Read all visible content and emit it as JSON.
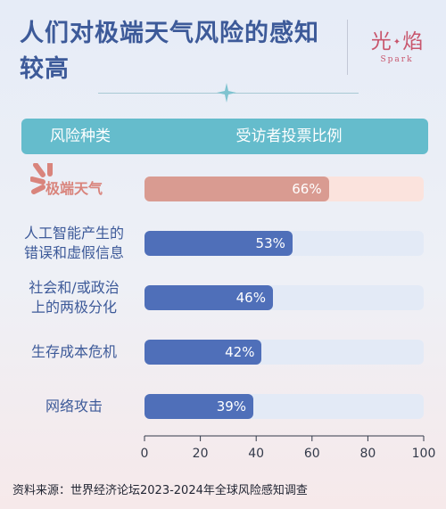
{
  "title": "人们对极端天气风险的感知较高",
  "logo": {
    "text_main": "光焰",
    "text_sub": "Spark"
  },
  "table_header": {
    "category": "风险种类",
    "share": "受访者投票比例"
  },
  "source": "资料来源：世界经济论坛2023-2024年全球风险感知调查",
  "colors": {
    "title": "#3d5a99",
    "header_bg": "#65bccc",
    "highlight_bar": "#d99b91",
    "highlight_track": "#fbe3dd",
    "bar": "#4f6fb9",
    "track": "#e3eaf6"
  },
  "chart_data": {
    "type": "bar",
    "orientation": "horizontal",
    "categories": [
      "极端天气",
      "人工智能产生的错误和虚假信息",
      "社会和/或政治上的两极分化",
      "生存成本危机",
      "网络攻击"
    ],
    "category_lines": [
      [
        "极端天气"
      ],
      [
        "人工智能产生的",
        "错误和虚假信息"
      ],
      [
        "社会和/或政治",
        "上的两极分化"
      ],
      [
        "生存成本危机"
      ],
      [
        "网络攻击"
      ]
    ],
    "values": [
      66,
      53,
      46,
      42,
      39
    ],
    "value_labels": [
      "66%",
      "53%",
      "46%",
      "42%",
      "39%"
    ],
    "highlight_index": 0,
    "xlim": [
      0,
      100
    ],
    "xticks": [
      0,
      20,
      40,
      60,
      80,
      100
    ],
    "xtick_labels": [
      "0",
      "20",
      "40",
      "60",
      "80",
      "100"
    ],
    "grid": false,
    "legend": "none"
  }
}
